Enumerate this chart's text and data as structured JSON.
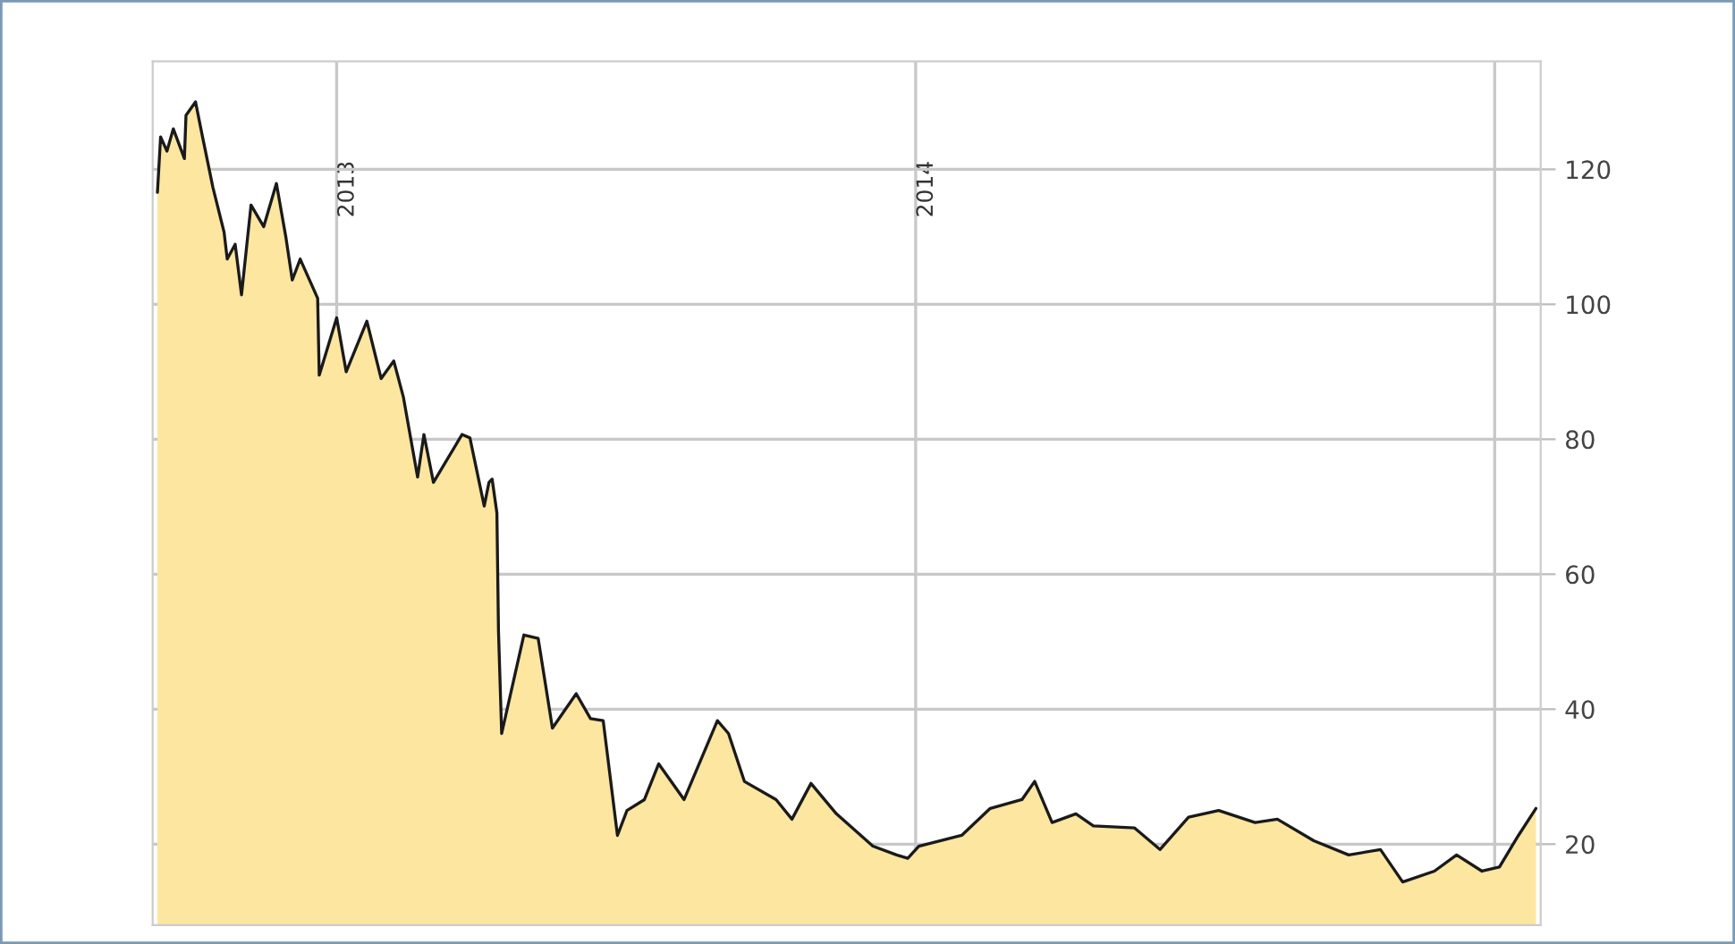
{
  "chart_data": {
    "type": "area",
    "x": [
      "2012-09-10",
      "2012-09-12",
      "2012-09-16",
      "2012-09-20",
      "2012-09-27",
      "2012-09-28",
      "2012-10-04",
      "2012-10-08",
      "2012-10-15",
      "2012-10-22",
      "2012-10-24",
      "2012-10-29",
      "2012-11-02",
      "2012-11-08",
      "2012-11-16",
      "2012-11-24",
      "2012-11-30",
      "2012-12-04",
      "2012-12-09",
      "2012-12-20",
      "2012-12-21",
      "2013-01-01",
      "2013-01-07",
      "2013-01-20",
      "2013-01-29",
      "2013-02-06",
      "2013-02-12",
      "2013-02-21",
      "2013-02-25",
      "2013-03-03",
      "2013-03-21",
      "2013-03-26",
      "2013-04-04",
      "2013-04-07",
      "2013-04-09",
      "2013-04-12",
      "2013-04-13",
      "2013-04-15",
      "2013-04-29",
      "2013-05-08",
      "2013-05-17",
      "2013-06-01",
      "2013-06-10",
      "2013-06-18",
      "2013-06-27",
      "2013-07-03",
      "2013-07-14",
      "2013-07-23",
      "2013-08-08",
      "2013-08-29",
      "2013-09-05",
      "2013-09-15",
      "2013-10-05",
      "2013-10-15",
      "2013-10-27",
      "2013-11-12",
      "2013-12-05",
      "2013-12-20",
      "2013-12-27",
      "2014-01-03",
      "2014-01-30",
      "2014-02-17",
      "2014-03-09",
      "2014-03-17",
      "2014-03-28",
      "2014-04-12",
      "2014-04-23",
      "2014-05-19",
      "2014-06-04",
      "2014-06-22",
      "2014-07-11",
      "2014-08-03",
      "2014-08-17",
      "2014-09-09",
      "2014-10-01",
      "2014-10-21",
      "2014-11-04",
      "2014-11-24",
      "2014-12-08",
      "2014-12-24",
      "2015-01-04",
      "2015-01-16",
      "2015-01-27"
    ],
    "series": [
      {
        "color": "#fce6a0",
        "values": [
          116.6,
          124.8,
          122.7,
          126,
          121.6,
          128,
          130,
          125.3,
          117.3,
          110.7,
          106.7,
          108.9,
          101.4,
          114.7,
          111.5,
          117.9,
          109.9,
          103.6,
          106.7,
          100.9,
          89.5,
          98,
          90,
          97.5,
          89,
          91.6,
          86.3,
          74.4,
          80.7,
          73.6,
          80.7,
          80.2,
          70.1,
          73.6,
          74.1,
          69.1,
          51.6,
          36.4,
          51,
          50.5,
          37.2,
          42.3,
          38.6,
          38.3,
          21.3,
          25,
          26.6,
          31.9,
          26.6,
          38.3,
          36.4,
          29.3,
          26.6,
          23.7,
          29,
          24.5,
          19.7,
          18.4,
          17.9,
          19.7,
          21.3,
          25.3,
          26.6,
          29.3,
          23.2,
          24.5,
          22.7,
          22.4,
          19.2,
          24,
          25,
          23.2,
          23.7,
          20.5,
          18.4,
          19.2,
          14.4,
          16,
          18.4,
          16,
          16.6,
          21.3,
          25.3
        ]
      }
    ],
    "xlim": [
      "2012-09-07",
      "2015-01-30"
    ],
    "xticks": [
      {
        "value": "2013-01-01",
        "label": "2013"
      },
      {
        "value": "2014-01-01",
        "label": "2014"
      },
      {
        "value": "2015-01-01",
        "label": null
      }
    ],
    "ylim": [
      8,
      136
    ],
    "yticks": [
      20,
      40,
      60,
      80,
      100,
      120
    ],
    "grid": true
  }
}
